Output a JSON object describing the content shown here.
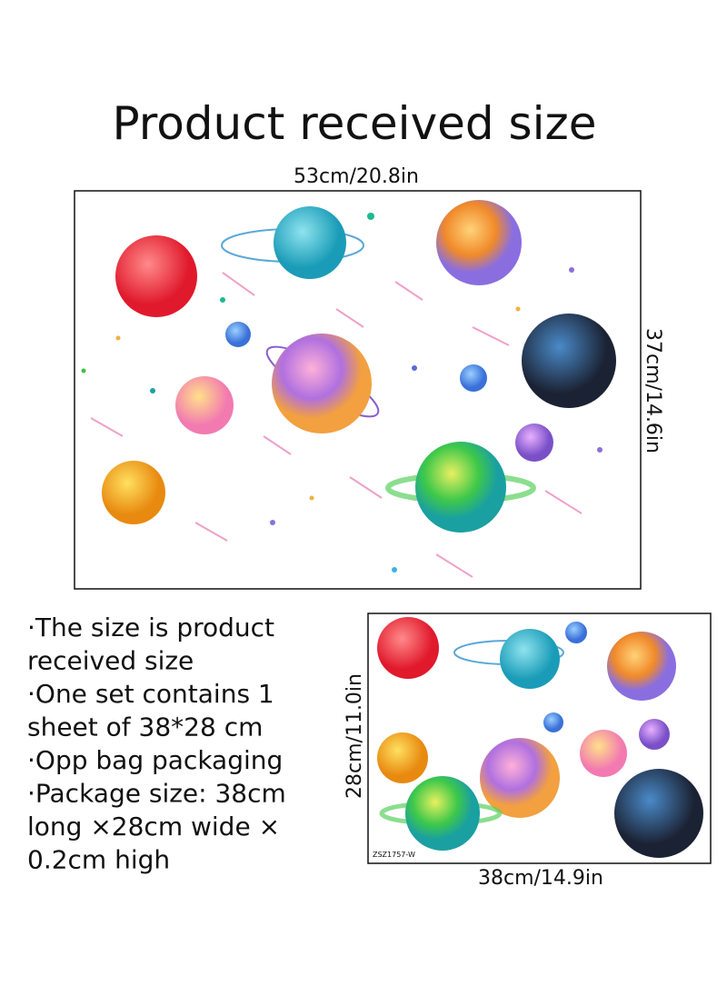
{
  "title": "Product received size",
  "main_sheet": {
    "width_label": "53cm/20.8in",
    "height_label": "37cm/14.6in"
  },
  "details": [
    "·The size is product",
    "received size",
    "·One set contains 1",
    "sheet of 38*28 cm",
    "·Opp bag packaging",
    "·Package size: 38cm",
    "long ×28cm wide ×",
    "0.2cm high"
  ],
  "small_sheet": {
    "height_label": "28cm/11.0in",
    "width_label": "38cm/14.9in",
    "code": "ZSZ1757-W"
  }
}
